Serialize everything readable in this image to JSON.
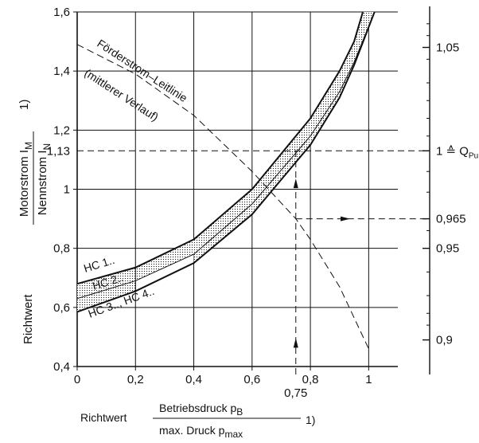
{
  "chart_data": {
    "type": "line",
    "xlabel": {
      "prefix": "Richtwert",
      "numerator": "Betriebsdruck p",
      "numerator_sub": "B",
      "denominator": "max. Druck p",
      "denominator_sub": "max",
      "footnote": "1)"
    },
    "ylabel": {
      "prefix": "Richtwert",
      "numerator": "Motorstrom I",
      "numerator_sub": "M",
      "denominator": "Nennstrom I",
      "denominator_sub": "N",
      "footnote": "1)"
    },
    "xlim": [
      0,
      1.1
    ],
    "ylim": [
      0.4,
      1.6
    ],
    "x_ticks": [
      "0",
      "0,2",
      "0,4",
      "0,6",
      "0,8",
      "1"
    ],
    "y_ticks": [
      "0,4",
      "0,6",
      "0,8",
      "1",
      "1,2",
      "1,4",
      "1,6"
    ],
    "y_extra_tick": "1,13",
    "x_extra_tick": "0,75",
    "secondary_axis": {
      "labels": [
        "1,05",
        "1 ≙ Q",
        "0,965",
        "0,95",
        "0,9"
      ],
      "q_sub": "Pu",
      "label_values": [
        1.05,
        1.0,
        0.965,
        0.95,
        0.9
      ],
      "label_y": [
        1.48,
        1.13,
        0.9,
        0.8,
        0.49
      ]
    },
    "grid": true,
    "series": [
      {
        "name": "HC 1..",
        "x": [
          0,
          0.2,
          0.4,
          0.6,
          0.8,
          0.9,
          0.95,
          0.98
        ],
        "y": [
          0.68,
          0.735,
          0.83,
          1.0,
          1.24,
          1.4,
          1.5,
          1.6
        ]
      },
      {
        "name": "HC 2..",
        "x": [
          0,
          0.2,
          0.4,
          0.6,
          0.8,
          0.9,
          0.95,
          1.02
        ],
        "y": [
          0.63,
          0.69,
          0.78,
          0.95,
          1.18,
          1.33,
          1.43,
          1.6
        ]
      },
      {
        "name": "HC 3.., HC 4..",
        "x": [
          0,
          0.2,
          0.4,
          0.6,
          0.8,
          0.9,
          0.95,
          1.02
        ],
        "y": [
          0.585,
          0.655,
          0.75,
          0.915,
          1.15,
          1.31,
          1.42,
          1.6
        ]
      },
      {
        "name": "Förderstrom–Leitlinie",
        "x": [
          0,
          0.2,
          0.4,
          0.6,
          0.75,
          0.8,
          0.9,
          1.0
        ],
        "y": [
          1.49,
          1.39,
          1.25,
          1.06,
          0.9,
          0.83,
          0.67,
          0.46
        ]
      }
    ],
    "annotations": [
      "Förderstrom–Leitlinie",
      "(mittlerer Verlauf)"
    ],
    "example_reading": {
      "x": 0.75,
      "y": 1.13,
      "flow_y": 0.9,
      "flow_label": "0,965"
    }
  }
}
